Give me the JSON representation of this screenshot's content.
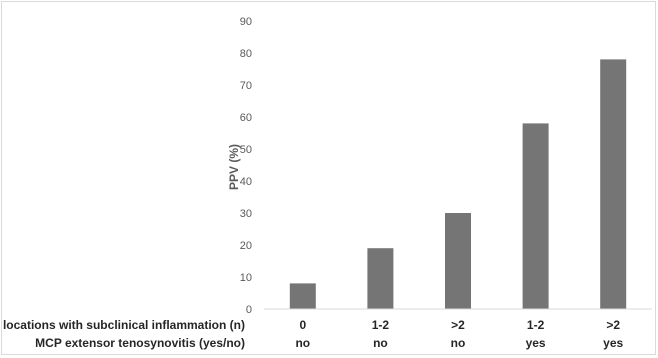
{
  "chart_data": {
    "type": "bar",
    "ylabel": "PPV (%)",
    "ylim": [
      0,
      90
    ],
    "yticks": [
      0,
      10,
      20,
      30,
      40,
      50,
      60,
      70,
      80,
      90
    ],
    "grid": false,
    "legend": "none",
    "bar_color": "#757575",
    "row_labels": [
      "locations with subclinical inflammation (n)",
      "MCP extensor tenosynovitis (yes/no)"
    ],
    "categories": [
      {
        "line1": "0",
        "line2": "no"
      },
      {
        "line1": "1-2",
        "line2": "no"
      },
      {
        "line1": ">2",
        "line2": "no"
      },
      {
        "line1": "1-2",
        "line2": "yes"
      },
      {
        "line1": ">2",
        "line2": "yes"
      }
    ],
    "values": [
      8,
      19,
      30,
      58,
      78
    ]
  }
}
